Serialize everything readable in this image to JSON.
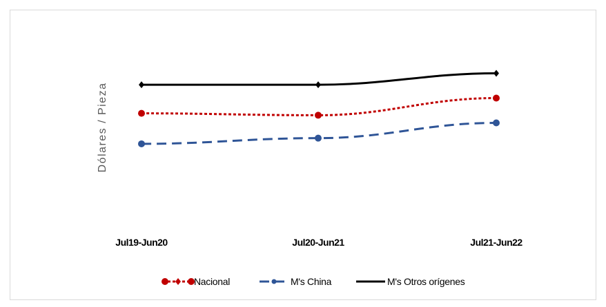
{
  "chart_data": {
    "type": "line",
    "title": "",
    "xlabel": "",
    "ylabel": "Dólares / Pieza",
    "categories": [
      "Jul19-Jun20",
      "Jul20-Jun21",
      "Jul21-Jun22"
    ],
    "ylim": [
      0,
      10
    ],
    "grid": false,
    "legend_position": "bottom",
    "series": [
      {
        "name": "Nacional",
        "values": [
          5.5,
          5.4,
          6.3
        ],
        "color": "#c00000",
        "dash": "dotted",
        "marker": "circle"
      },
      {
        "name": "M's China",
        "values": [
          3.9,
          4.2,
          5.0
        ],
        "color": "#2f5597",
        "dash": "dashed",
        "marker": "circle"
      },
      {
        "name": "M's Otros orígenes",
        "values": [
          7.0,
          7.0,
          7.6
        ],
        "color": "#000000",
        "dash": "solid",
        "marker": "diamond"
      }
    ]
  }
}
